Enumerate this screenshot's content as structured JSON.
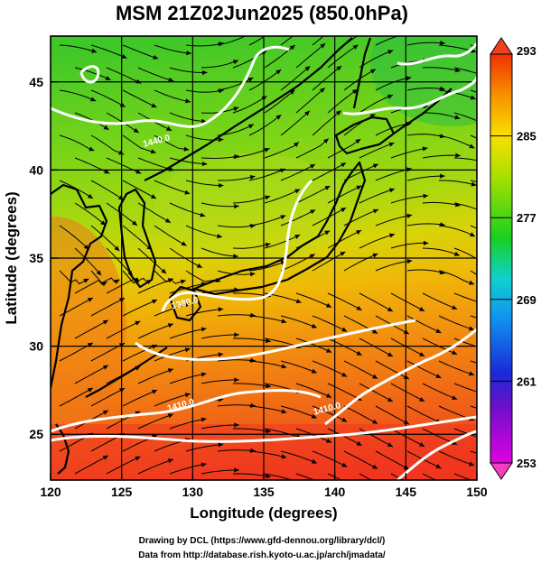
{
  "title": "MSM 21Z02Jun2025 (850.0hPa)",
  "xlabel": "Longitude (degrees)",
  "ylabel": "Latitude  (degrees)",
  "credits": [
    "Drawing by DCL (https://www.gfd-dennou.org/library/dcl/)",
    "Data from http://database.rish.kyoto-u.ac.jp/arch/jmadata/"
  ],
  "map_data": {
    "projection": "equirectangular",
    "lon_range": [
      120,
      150
    ],
    "lat_range": [
      22.4,
      47.6
    ],
    "lon_ticks": [
      120,
      125,
      130,
      135,
      140,
      145,
      150
    ],
    "lat_ticks": [
      25,
      30,
      35,
      40,
      45
    ],
    "field": "temperature (K) shaded, geopotential height contours, wind streamlines",
    "colorbar": {
      "min": 253,
      "max": 293,
      "tick_values": [
        253,
        261,
        269,
        277,
        285,
        293
      ],
      "tick_labels": [
        "253",
        "261",
        "269",
        "277",
        "285",
        "293"
      ],
      "extend": "both"
    },
    "contour_labels": [
      {
        "text": "1440.0",
        "lon": 127.5,
        "lat": 41.5
      },
      {
        "text": "1380.0",
        "lon": 129.5,
        "lat": 32.3
      },
      {
        "text": "1410.0",
        "lon": 129.2,
        "lat": 26.5
      },
      {
        "text": "1410.0",
        "lon": 139.5,
        "lat": 26.3
      }
    ]
  }
}
